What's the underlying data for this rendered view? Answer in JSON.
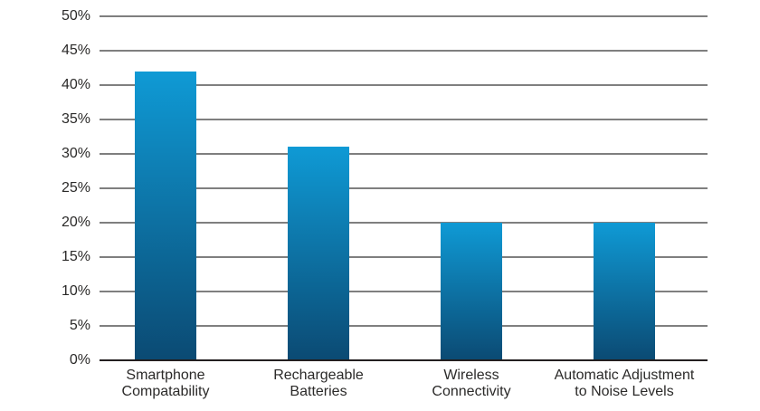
{
  "chart_data": {
    "type": "bar",
    "title": "",
    "xlabel": "",
    "ylabel": "",
    "categories": [
      "Smartphone Compatability",
      "Rechargeable Batteries",
      "Wireless Connectivity",
      "Automatic Adjustment to Noise Levels"
    ],
    "category_lines": [
      [
        "Smartphone",
        "Compatability"
      ],
      [
        "Rechargeable",
        "Batteries"
      ],
      [
        "Wireless",
        "Connectivity"
      ],
      [
        "Automatic Adjustment",
        "to Noise Levels"
      ]
    ],
    "values": [
      42,
      31,
      20,
      20
    ],
    "ylim": [
      0,
      50
    ],
    "ytick_step": 5,
    "ytick_labels": [
      "0%",
      "5%",
      "10%",
      "15%",
      "20%",
      "25%",
      "30%",
      "35%",
      "40%",
      "45%",
      "50%"
    ],
    "grid": true,
    "legend": "none",
    "colors": {
      "bar_gradient_top": "#0F9AD5",
      "bar_gradient_bottom": "#0B4A73",
      "gridline": "#7F7F7F",
      "axis_line": "#231F20",
      "label_text": "#2B2A29",
      "background": "#FFFFFF"
    }
  }
}
